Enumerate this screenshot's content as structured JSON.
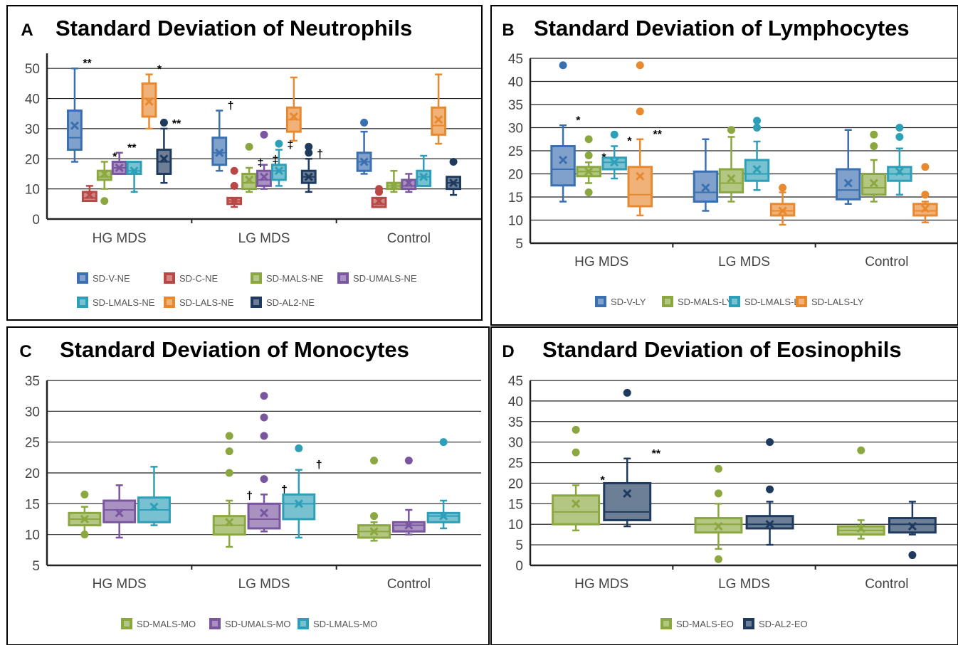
{
  "chart_data": [
    {
      "type": "box",
      "panel_letter": "A",
      "title": "Standard Deviation of Neutrophils",
      "categories": [
        "HG MDS",
        "LG MDS",
        "Control"
      ],
      "yticks": [
        0,
        10,
        20,
        30,
        40,
        50
      ],
      "ylim": [
        0,
        55
      ],
      "grid": true,
      "legend_position": "bottom",
      "legend_rows": [
        [
          "SD-V-NE",
          "SD-C-NE",
          "SD-MALS-NE",
          "SD-UMALS-NE"
        ],
        [
          "SD-LMALS-NE",
          "SD-LALS-NE",
          "SD-AL2-NE"
        ]
      ],
      "series": [
        {
          "name": "SD-V-NE",
          "color": "#3a6fb0",
          "boxes": [
            {
              "min": 19,
              "q1": 23,
              "median": 27,
              "q3": 36,
              "max": 50,
              "mean": 31,
              "outliers": [],
              "mark": "**"
            },
            {
              "min": 16,
              "q1": 18,
              "median": 22,
              "q3": 27,
              "max": 36,
              "mean": 22,
              "outliers": [],
              "mark": "†"
            },
            {
              "min": 15,
              "q1": 16,
              "median": 19,
              "q3": 22,
              "max": 29,
              "mean": 19,
              "outliers": [
                32
              ],
              "mark": ""
            }
          ]
        },
        {
          "name": "SD-C-NE",
          "color": "#b94745",
          "boxes": [
            {
              "min": 6,
              "q1": 6,
              "median": 7,
              "q3": 9,
              "max": 11,
              "mean": 8,
              "outliers": [],
              "mark": "**"
            },
            {
              "min": 4,
              "q1": 5,
              "median": 6,
              "q3": 7,
              "max": 7,
              "mean": 6,
              "outliers": [
                11,
                16
              ],
              "mark": ""
            },
            {
              "min": 4,
              "q1": 4,
              "median": 5,
              "q3": 7,
              "max": 7,
              "mean": 6,
              "outliers": [
                9,
                10
              ],
              "mark": ""
            }
          ]
        },
        {
          "name": "SD-MALS-NE",
          "color": "#8aa83f",
          "boxes": [
            {
              "min": 10,
              "q1": 13,
              "median": 14,
              "q3": 16,
              "max": 19,
              "mean": 15,
              "outliers": [
                6
              ],
              "mark": "*"
            },
            {
              "min": 9,
              "q1": 10,
              "median": 12,
              "q3": 15,
              "max": 17,
              "mean": 13,
              "outliers": [
                24
              ],
              "mark": "‡"
            },
            {
              "min": 9,
              "q1": 10,
              "median": 11,
              "q3": 12,
              "max": 16,
              "mean": 11,
              "outliers": [],
              "mark": ""
            }
          ]
        },
        {
          "name": "SD-UMALS-NE",
          "color": "#7a56a0",
          "boxes": [
            {
              "min": 15,
              "q1": 15,
              "median": 17,
              "q3": 19,
              "max": 22,
              "mean": 17,
              "outliers": [],
              "mark": "**"
            },
            {
              "min": 10,
              "q1": 11,
              "median": 13,
              "q3": 16,
              "max": 18,
              "mean": 14,
              "outliers": [
                28
              ],
              "mark": "‡"
            },
            {
              "min": 9,
              "q1": 10,
              "median": 11,
              "q3": 13,
              "max": 15,
              "mean": 12,
              "outliers": [],
              "mark": ""
            }
          ]
        },
        {
          "name": "SD-LMALS-NE",
          "color": "#2e9fb8",
          "boxes": [
            {
              "min": 9,
              "q1": 15,
              "median": 16,
              "q3": 19,
              "max": 19,
              "mean": 16,
              "outliers": [],
              "mark": ""
            },
            {
              "min": 11,
              "q1": 13,
              "median": 16,
              "q3": 18,
              "max": 23,
              "mean": 16,
              "outliers": [
                25
              ],
              "mark": "‡"
            },
            {
              "min": 11,
              "q1": 11,
              "median": 14,
              "q3": 16,
              "max": 21,
              "mean": 14,
              "outliers": [],
              "mark": ""
            }
          ]
        },
        {
          "name": "SD-LALS-NE",
          "color": "#e8892f",
          "boxes": [
            {
              "min": 30,
              "q1": 34,
              "median": 40,
              "q3": 45,
              "max": 48,
              "mean": 39,
              "outliers": [],
              "mark": "*"
            },
            {
              "min": 26,
              "q1": 29,
              "median": 33,
              "q3": 37,
              "max": 47,
              "mean": 34,
              "outliers": [],
              "mark": ""
            },
            {
              "min": 25,
              "q1": 28,
              "median": 31,
              "q3": 37,
              "max": 48,
              "mean": 33,
              "outliers": [],
              "mark": ""
            }
          ]
        },
        {
          "name": "SD-AL2-NE",
          "color": "#1f3a5f",
          "boxes": [
            {
              "min": 12,
              "q1": 15,
              "median": 19,
              "q3": 23,
              "max": 30,
              "mean": 20,
              "outliers": [
                32
              ],
              "mark": "**"
            },
            {
              "min": 9,
              "q1": 12,
              "median": 14,
              "q3": 16,
              "max": 20,
              "mean": 14,
              "outliers": [
                22,
                24
              ],
              "mark": "†"
            },
            {
              "min": 8,
              "q1": 10,
              "median": 12,
              "q3": 14,
              "max": 14,
              "mean": 12,
              "outliers": [
                19
              ],
              "mark": ""
            }
          ]
        }
      ]
    },
    {
      "type": "box",
      "panel_letter": "B",
      "title": "Standard Deviation of Lymphocytes",
      "categories": [
        "HG MDS",
        "LG MDS",
        "Control"
      ],
      "yticks": [
        5,
        10,
        15,
        20,
        25,
        30,
        35,
        40,
        45
      ],
      "ylim": [
        5,
        45
      ],
      "grid": true,
      "legend_position": "bottom",
      "legend_rows": [
        [
          "SD-V-LY",
          "SD-MALS-LY",
          "SD-LMALS-LY",
          "SD-LALS-LY"
        ]
      ],
      "series": [
        {
          "name": "SD-V-LY",
          "color": "#3a6fb0",
          "boxes": [
            {
              "min": 14,
              "q1": 17.5,
              "median": 21,
              "q3": 26,
              "max": 30.5,
              "mean": 23,
              "outliers": [
                43.5
              ],
              "mark": "*"
            },
            {
              "min": 12,
              "q1": 14,
              "median": 16,
              "q3": 20.5,
              "max": 27.5,
              "mean": 17,
              "outliers": [],
              "mark": ""
            },
            {
              "min": 13.5,
              "q1": 14.5,
              "median": 16.5,
              "q3": 21,
              "max": 29.5,
              "mean": 18,
              "outliers": [],
              "mark": ""
            }
          ]
        },
        {
          "name": "SD-MALS-LY",
          "color": "#8aa83f",
          "boxes": [
            {
              "min": 18,
              "q1": 19.5,
              "median": 20.5,
              "q3": 21.5,
              "max": 22.5,
              "mean": 20.5,
              "outliers": [
                16,
                24,
                27.5
              ],
              "mark": "*"
            },
            {
              "min": 14,
              "q1": 16,
              "median": 18,
              "q3": 21,
              "max": 28,
              "mean": 19,
              "outliers": [
                29.5
              ],
              "mark": ""
            },
            {
              "min": 14,
              "q1": 15.5,
              "median": 17,
              "q3": 20,
              "max": 23,
              "mean": 18,
              "outliers": [
                26,
                28.5
              ],
              "mark": ""
            }
          ]
        },
        {
          "name": "SD-LMALS-LY",
          "color": "#2e9fb8",
          "boxes": [
            {
              "min": 19,
              "q1": 21,
              "median": 22.5,
              "q3": 23.5,
              "max": 26,
              "mean": 22.5,
              "outliers": [
                28.5
              ],
              "mark": "*"
            },
            {
              "min": 16.5,
              "q1": 18.5,
              "median": 20,
              "q3": 23,
              "max": 27,
              "mean": 21,
              "outliers": [
                30,
                31.5
              ],
              "mark": ""
            },
            {
              "min": 15.5,
              "q1": 18.5,
              "median": 20,
              "q3": 21.5,
              "max": 25.5,
              "mean": 20.5,
              "outliers": [
                28,
                30
              ],
              "mark": ""
            }
          ]
        },
        {
          "name": "SD-LALS-LY",
          "color": "#e8892f",
          "boxes": [
            {
              "min": 11,
              "q1": 13,
              "median": 15.5,
              "q3": 21.5,
              "max": 27.5,
              "mean": 19.5,
              "outliers": [
                33.5,
                43.5
              ],
              "mark": "**"
            },
            {
              "min": 9,
              "q1": 11,
              "median": 12,
              "q3": 13.5,
              "max": 16,
              "mean": 12,
              "outliers": [
                17
              ],
              "mark": ""
            },
            {
              "min": 9.5,
              "q1": 11,
              "median": 12,
              "q3": 13.5,
              "max": 14,
              "mean": 12.5,
              "outliers": [
                15.5,
                21.5
              ],
              "mark": ""
            }
          ]
        }
      ]
    },
    {
      "type": "box",
      "panel_letter": "C",
      "title": "Standard Deviation of Monocytes",
      "categories": [
        "HG MDS",
        "LG MDS",
        "Control"
      ],
      "yticks": [
        5,
        10,
        15,
        20,
        25,
        30,
        35
      ],
      "ylim": [
        5,
        35
      ],
      "grid": true,
      "legend_position": "bottom",
      "legend_rows": [
        [
          "SD-MALS-MO",
          "SD-UMALS-MO",
          "SD-LMALS-MO"
        ]
      ],
      "series": [
        {
          "name": "SD-MALS-MO",
          "color": "#8aa83f",
          "boxes": [
            {
              "min": 10,
              "q1": 11.5,
              "median": 12.5,
              "q3": 13.5,
              "max": 14.5,
              "mean": 12.5,
              "outliers": [
                10,
                16.5
              ],
              "mark": ""
            },
            {
              "min": 8,
              "q1": 10,
              "median": 11.5,
              "q3": 13,
              "max": 15.5,
              "mean": 12,
              "outliers": [
                20,
                23.5,
                26
              ],
              "mark": "†"
            },
            {
              "min": 9,
              "q1": 9.5,
              "median": 10.5,
              "q3": 11.5,
              "max": 12,
              "mean": 10.5,
              "outliers": [
                13,
                22
              ],
              "mark": ""
            }
          ]
        },
        {
          "name": "SD-UMALS-MO",
          "color": "#7a56a0",
          "boxes": [
            {
              "min": 9.5,
              "q1": 12,
              "median": 14,
              "q3": 15.5,
              "max": 18,
              "mean": 13.5,
              "outliers": [],
              "mark": ""
            },
            {
              "min": 10.5,
              "q1": 11,
              "median": 12.5,
              "q3": 15,
              "max": 16.5,
              "mean": 13.5,
              "outliers": [
                19,
                26,
                29,
                32.5
              ],
              "mark": "†"
            },
            {
              "min": 10,
              "q1": 10.5,
              "median": 11.5,
              "q3": 12,
              "max": 14,
              "mean": 11.5,
              "outliers": [
                22
              ],
              "mark": ""
            }
          ]
        },
        {
          "name": "SD-LMALS-MO",
          "color": "#2e9fb8",
          "boxes": [
            {
              "min": 11.5,
              "q1": 12,
              "median": 14,
              "q3": 16,
              "max": 21,
              "mean": 14.5,
              "outliers": [],
              "mark": ""
            },
            {
              "min": 9.5,
              "q1": 12.5,
              "median": 15,
              "q3": 16.5,
              "max": 20.5,
              "mean": 15,
              "outliers": [
                24
              ],
              "mark": "†"
            },
            {
              "min": 11,
              "q1": 12,
              "median": 13,
              "q3": 13.5,
              "max": 15.5,
              "mean": 13,
              "outliers": [
                25
              ],
              "mark": ""
            }
          ]
        }
      ]
    },
    {
      "type": "box",
      "panel_letter": "D",
      "title": "Standard Deviation of Eosinophils",
      "categories": [
        "HG MDS",
        "LG MDS",
        "Control"
      ],
      "yticks": [
        0,
        5,
        10,
        15,
        20,
        25,
        30,
        35,
        40,
        45
      ],
      "ylim": [
        0,
        45
      ],
      "grid": true,
      "legend_position": "bottom",
      "legend_rows": [
        [
          "SD-MALS-EO",
          "SD-AL2-EO"
        ]
      ],
      "series": [
        {
          "name": "SD-MALS-EO",
          "color": "#8aa83f",
          "boxes": [
            {
              "min": 8.5,
              "q1": 10,
              "median": 13,
              "q3": 17,
              "max": 19.5,
              "mean": 15,
              "outliers": [
                27.5,
                33
              ],
              "mark": "*"
            },
            {
              "min": 4,
              "q1": 8,
              "median": 10,
              "q3": 11.5,
              "max": 15,
              "mean": 9.5,
              "outliers": [
                1.5,
                17.5,
                23.5
              ],
              "mark": ""
            },
            {
              "min": 6.5,
              "q1": 7.5,
              "median": 8.5,
              "q3": 9.5,
              "max": 11,
              "mean": 9,
              "outliers": [
                28
              ],
              "mark": ""
            }
          ]
        },
        {
          "name": "SD-AL2-EO",
          "color": "#1f3a5f",
          "boxes": [
            {
              "min": 9.5,
              "q1": 11,
              "median": 13,
              "q3": 20,
              "max": 26,
              "mean": 17.5,
              "outliers": [
                42
              ],
              "mark": "**"
            },
            {
              "min": 5,
              "q1": 9,
              "median": 10,
              "q3": 12,
              "max": 15.5,
              "mean": 10,
              "outliers": [
                18.5,
                30
              ],
              "mark": ""
            },
            {
              "min": 7.5,
              "q1": 8,
              "median": 10,
              "q3": 11.5,
              "max": 15.5,
              "mean": 9.5,
              "outliers": [
                2.5
              ],
              "mark": ""
            }
          ]
        }
      ]
    }
  ]
}
